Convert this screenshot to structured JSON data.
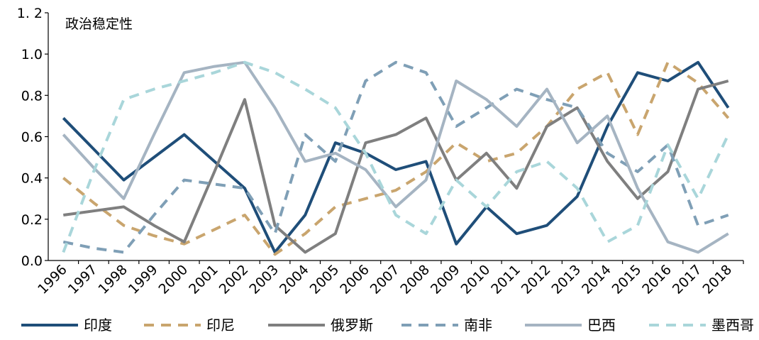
{
  "chart_data": {
    "type": "line",
    "title": "政治稳定性",
    "xlabel": "",
    "ylabel": "",
    "ylim": [
      0,
      1.2
    ],
    "yticks": [
      "0.0",
      "0.2",
      "0.4",
      "0.6",
      "0.8",
      "1.0",
      "1. 2"
    ],
    "grid": false,
    "legend_position": "bottom",
    "categories": [
      "1996",
      "1997",
      "1998",
      "1999",
      "2000",
      "2001",
      "2002",
      "2003",
      "2004",
      "2005",
      "2006",
      "2007",
      "2008",
      "2009",
      "2010",
      "2011",
      "2012",
      "2013",
      "2014",
      "2015",
      "2016",
      "2017",
      "2018"
    ],
    "series": [
      {
        "name": "印度",
        "color": "#1f4e79",
        "dash": "solid",
        "values": [
          0.69,
          0.54,
          0.39,
          0.5,
          0.61,
          0.48,
          0.35,
          0.04,
          0.22,
          0.57,
          0.52,
          0.44,
          0.48,
          0.08,
          0.26,
          0.13,
          0.17,
          0.31,
          0.65,
          0.91,
          0.87,
          0.96,
          0.74
        ]
      },
      {
        "name": "印尼",
        "color": "#c9a56e",
        "dash": "dashed",
        "values": [
          0.4,
          0.28,
          0.17,
          0.12,
          0.08,
          0.15,
          0.22,
          0.03,
          0.13,
          0.26,
          0.3,
          0.34,
          0.43,
          0.57,
          0.48,
          0.52,
          0.65,
          0.83,
          0.91,
          0.61,
          0.96,
          0.86,
          0.69
        ]
      },
      {
        "name": "俄罗斯",
        "color": "#7f7f7f",
        "dash": "solid",
        "values": [
          0.22,
          0.24,
          0.26,
          0.17,
          0.09,
          0.43,
          0.78,
          0.17,
          0.04,
          0.13,
          0.57,
          0.61,
          0.69,
          0.39,
          0.52,
          0.35,
          0.65,
          0.74,
          0.48,
          0.3,
          0.43,
          0.83,
          0.87
        ]
      },
      {
        "name": "南非",
        "color": "#7f9fb6",
        "dash": "dashed",
        "values": [
          0.09,
          0.06,
          0.04,
          0.22,
          0.39,
          0.37,
          0.35,
          0.13,
          0.61,
          0.48,
          0.87,
          0.96,
          0.91,
          0.65,
          0.74,
          0.83,
          0.78,
          0.74,
          0.52,
          0.43,
          0.56,
          0.17,
          0.22
        ]
      },
      {
        "name": "巴西",
        "color": "#a5b4c2",
        "dash": "solid",
        "values": [
          0.61,
          0.45,
          0.3,
          0.61,
          0.91,
          0.94,
          0.96,
          0.74,
          0.48,
          0.52,
          0.44,
          0.26,
          0.39,
          0.87,
          0.78,
          0.65,
          0.83,
          0.57,
          0.7,
          0.35,
          0.09,
          0.04,
          0.13
        ]
      },
      {
        "name": "墨西哥",
        "color": "#a9d6da",
        "dash": "dashed",
        "values": [
          0.04,
          0.43,
          0.78,
          0.83,
          0.87,
          0.91,
          0.96,
          0.91,
          0.83,
          0.74,
          0.52,
          0.22,
          0.13,
          0.39,
          0.26,
          0.43,
          0.48,
          0.35,
          0.09,
          0.17,
          0.56,
          0.3,
          0.61
        ]
      }
    ]
  }
}
